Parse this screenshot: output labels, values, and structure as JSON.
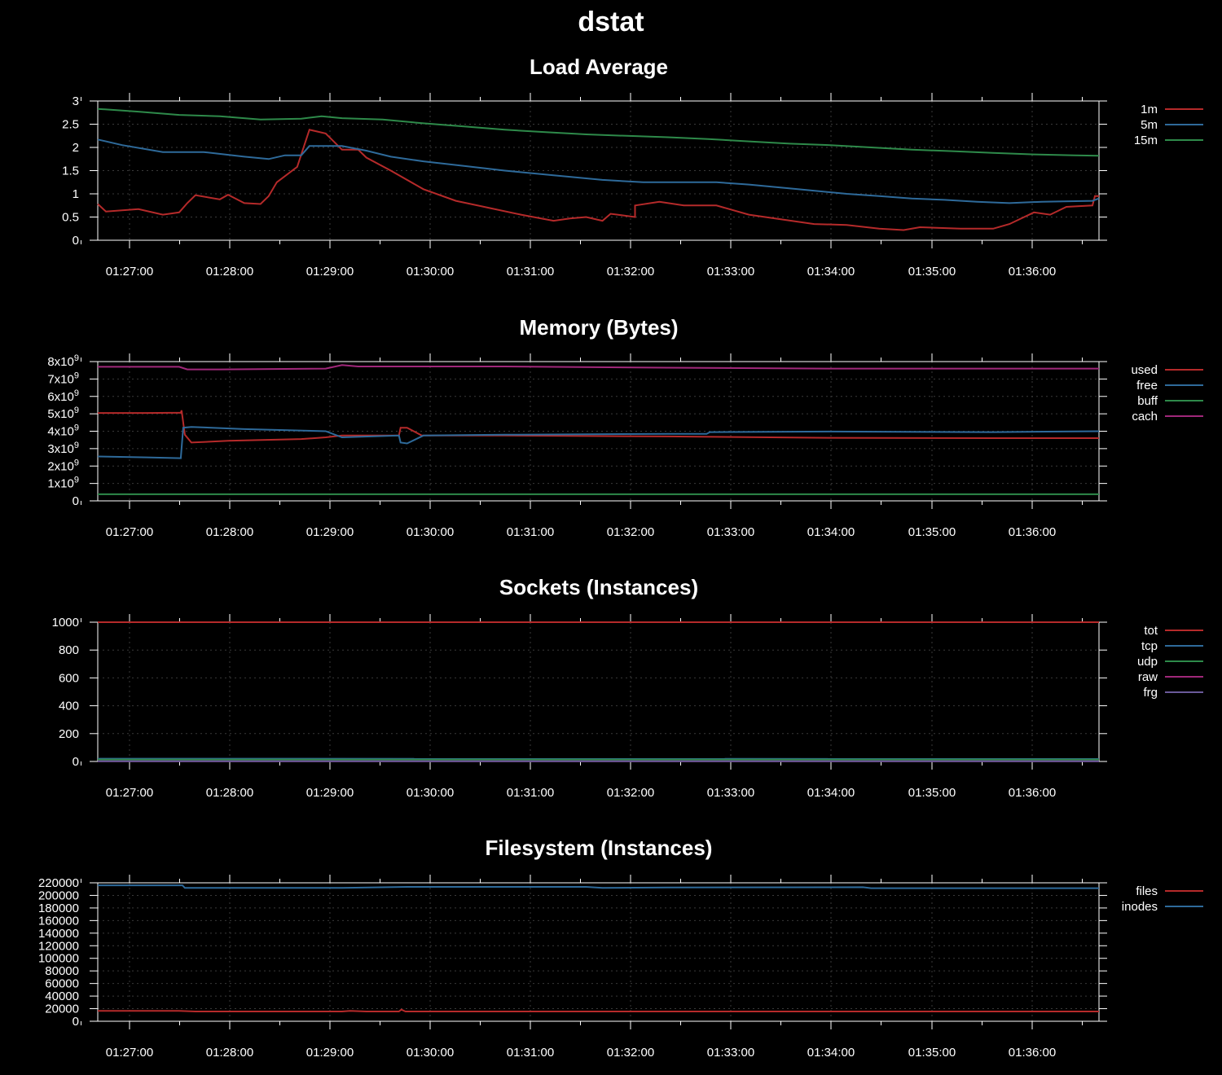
{
  "title": "dstat",
  "colors": {
    "background": "#000000",
    "axis": "#ffffff",
    "grid": "#3a3a3a",
    "red": "#b52a2a",
    "blue": "#2e6a9a",
    "green": "#2e8a4a",
    "magenta": "#a0287a",
    "purple": "#6a5a9a"
  },
  "x_ticks": [
    "01:27:00",
    "01:28:00",
    "01:29:00",
    "01:30:00",
    "01:31:00",
    "01:32:00",
    "01:33:00",
    "01:34:00",
    "01:35:00",
    "01:36:00"
  ],
  "chart_data": [
    {
      "type": "line",
      "title": "Load Average",
      "x_range": [
        "01:26:41",
        "01:36:41"
      ],
      "ylim": [
        0,
        3
      ],
      "yticks": [
        "0",
        "0.5",
        "1",
        "1.5",
        "2",
        "2.5",
        "3"
      ],
      "grid": true,
      "legend_position": "right",
      "series": [
        {
          "name": "1m",
          "color": "#b52a2a",
          "points": [
            [
              0,
              0.78
            ],
            [
              10,
              0.62
            ],
            [
              50,
              0.67
            ],
            [
              80,
              0.55
            ],
            [
              100,
              0.6
            ],
            [
              110,
              0.8
            ],
            [
              120,
              0.97
            ],
            [
              150,
              0.88
            ],
            [
              160,
              0.98
            ],
            [
              180,
              0.8
            ],
            [
              200,
              0.78
            ],
            [
              210,
              0.95
            ],
            [
              220,
              1.25
            ],
            [
              245,
              1.58
            ],
            [
              260,
              2.38
            ],
            [
              280,
              2.3
            ],
            [
              300,
              1.95
            ],
            [
              320,
              1.95
            ],
            [
              330,
              1.78
            ],
            [
              360,
              1.5
            ],
            [
              400,
              1.1
            ],
            [
              440,
              0.85
            ],
            [
              480,
              0.7
            ],
            [
              520,
              0.55
            ],
            [
              560,
              0.42
            ],
            [
              580,
              0.47
            ],
            [
              600,
              0.5
            ],
            [
              620,
              0.42
            ],
            [
              630,
              0.57
            ],
            [
              660,
              0.5
            ],
            [
              660,
              0.75
            ],
            [
              690,
              0.83
            ],
            [
              720,
              0.75
            ],
            [
              760,
              0.75
            ],
            [
              800,
              0.55
            ],
            [
              840,
              0.45
            ],
            [
              880,
              0.35
            ],
            [
              920,
              0.33
            ],
            [
              960,
              0.25
            ],
            [
              990,
              0.22
            ],
            [
              1010,
              0.28
            ],
            [
              1060,
              0.25
            ],
            [
              1100,
              0.25
            ],
            [
              1120,
              0.35
            ],
            [
              1150,
              0.6
            ],
            [
              1170,
              0.55
            ],
            [
              1190,
              0.72
            ],
            [
              1222,
              0.75
            ],
            [
              1225,
              0.95
            ],
            [
              1230,
              0.95
            ]
          ]
        },
        {
          "name": "5m",
          "color": "#2e6a9a",
          "points": [
            [
              0,
              2.17
            ],
            [
              30,
              2.05
            ],
            [
              80,
              1.9
            ],
            [
              130,
              1.9
            ],
            [
              180,
              1.8
            ],
            [
              210,
              1.75
            ],
            [
              230,
              1.83
            ],
            [
              250,
              1.83
            ],
            [
              260,
              2.03
            ],
            [
              300,
              2.03
            ],
            [
              330,
              1.93
            ],
            [
              360,
              1.8
            ],
            [
              400,
              1.7
            ],
            [
              450,
              1.6
            ],
            [
              500,
              1.5
            ],
            [
              560,
              1.4
            ],
            [
              620,
              1.3
            ],
            [
              670,
              1.25
            ],
            [
              700,
              1.25
            ],
            [
              760,
              1.25
            ],
            [
              800,
              1.2
            ],
            [
              860,
              1.1
            ],
            [
              920,
              1.0
            ],
            [
              960,
              0.95
            ],
            [
              1000,
              0.9
            ],
            [
              1040,
              0.87
            ],
            [
              1080,
              0.83
            ],
            [
              1120,
              0.8
            ],
            [
              1160,
              0.83
            ],
            [
              1222,
              0.85
            ],
            [
              1230,
              0.9
            ]
          ]
        },
        {
          "name": "15m",
          "color": "#2e8a4a",
          "points": [
            [
              0,
              2.83
            ],
            [
              50,
              2.77
            ],
            [
              100,
              2.7
            ],
            [
              150,
              2.67
            ],
            [
              200,
              2.6
            ],
            [
              250,
              2.62
            ],
            [
              275,
              2.67
            ],
            [
              300,
              2.63
            ],
            [
              350,
              2.6
            ],
            [
              400,
              2.52
            ],
            [
              450,
              2.45
            ],
            [
              500,
              2.38
            ],
            [
              550,
              2.33
            ],
            [
              600,
              2.28
            ],
            [
              650,
              2.25
            ],
            [
              700,
              2.22
            ],
            [
              750,
              2.18
            ],
            [
              800,
              2.13
            ],
            [
              850,
              2.08
            ],
            [
              900,
              2.05
            ],
            [
              950,
              2.0
            ],
            [
              1000,
              1.95
            ],
            [
              1050,
              1.92
            ],
            [
              1100,
              1.88
            ],
            [
              1150,
              1.85
            ],
            [
              1200,
              1.83
            ],
            [
              1230,
              1.82
            ]
          ]
        }
      ]
    },
    {
      "type": "line",
      "title": "Memory (Bytes)",
      "x_range": [
        "01:26:41",
        "01:36:41"
      ],
      "ylim": [
        0,
        8000000000
      ],
      "yticks": [
        "0",
        "1x10^9",
        "2x10^9",
        "3x10^9",
        "4x10^9",
        "5x10^9",
        "6x10^9",
        "7x10^9",
        "8x10^9"
      ],
      "grid": true,
      "legend_position": "right",
      "series": [
        {
          "name": "used",
          "color": "#b52a2a",
          "points": [
            [
              0,
              5050000000.0
            ],
            [
              60,
              5050000000.0
            ],
            [
              102,
              5060000000.0
            ],
            [
              103,
              5200000000.0
            ],
            [
              107,
              3800000000.0
            ],
            [
              115,
              3350000000.0
            ],
            [
              160,
              3450000000.0
            ],
            [
              250,
              3550000000.0
            ],
            [
              280,
              3650000000.0
            ],
            [
              300,
              3750000000.0
            ],
            [
              370,
              3750000000.0
            ],
            [
              372,
              4200000000.0
            ],
            [
              380,
              4200000000.0
            ],
            [
              398,
              3750000000.0
            ],
            [
              500,
              3750000000.0
            ],
            [
              700,
              3700000000.0
            ],
            [
              900,
              3620000000.0
            ],
            [
              1100,
              3600000000.0
            ],
            [
              1230,
              3600000000.0
            ]
          ]
        },
        {
          "name": "free",
          "color": "#2e6a9a",
          "points": [
            [
              0,
              2550000000.0
            ],
            [
              60,
              2500000000.0
            ],
            [
              102,
              2450000000.0
            ],
            [
              105,
              4200000000.0
            ],
            [
              115,
              4250000000.0
            ],
            [
              180,
              4120000000.0
            ],
            [
              280,
              4000000000.0
            ],
            [
              300,
              3650000000.0
            ],
            [
              370,
              3750000000.0
            ],
            [
              372,
              3350000000.0
            ],
            [
              380,
              3300000000.0
            ],
            [
              400,
              3750000000.0
            ],
            [
              500,
              3800000000.0
            ],
            [
              700,
              3850000000.0
            ],
            [
              748,
              3850000000.0
            ],
            [
              752,
              3950000000.0
            ],
            [
              900,
              3980000000.0
            ],
            [
              1100,
              3950000000.0
            ],
            [
              1230,
              4000000000.0
            ]
          ]
        },
        {
          "name": "buff",
          "color": "#2e8a4a",
          "points": [
            [
              0,
              380000000.0
            ],
            [
              1230,
              380000000.0
            ]
          ]
        },
        {
          "name": "cach",
          "color": "#a0287a",
          "points": [
            [
              0,
              7700000000.0
            ],
            [
              100,
              7700000000.0
            ],
            [
              110,
              7550000000.0
            ],
            [
              150,
              7550000000.0
            ],
            [
              280,
              7600000000.0
            ],
            [
              300,
              7800000000.0
            ],
            [
              320,
              7720000000.0
            ],
            [
              500,
              7720000000.0
            ],
            [
              700,
              7650000000.0
            ],
            [
              900,
              7600000000.0
            ],
            [
              1230,
              7600000000.0
            ]
          ]
        }
      ]
    },
    {
      "type": "line",
      "title": "Sockets (Instances)",
      "x_range": [
        "01:26:41",
        "01:36:41"
      ],
      "ylim": [
        0,
        1000
      ],
      "yticks": [
        "0",
        "200",
        "400",
        "600",
        "800",
        "1000"
      ],
      "grid": true,
      "legend_position": "right",
      "series": [
        {
          "name": "tot",
          "color": "#b52a2a",
          "points": [
            [
              0,
              1000
            ],
            [
              1230,
              1000
            ]
          ]
        },
        {
          "name": "tcp",
          "color": "#2e6a9a",
          "points": [
            [
              0,
              20
            ],
            [
              1230,
              18
            ]
          ]
        },
        {
          "name": "udp",
          "color": "#2e8a4a",
          "points": [
            [
              0,
              14
            ],
            [
              1230,
              14
            ]
          ]
        },
        {
          "name": "raw",
          "color": "#a0287a",
          "points": [
            [
              0,
              1
            ],
            [
              1230,
              1
            ]
          ]
        },
        {
          "name": "frg",
          "color": "#6a5a9a",
          "points": [
            [
              0,
              2
            ],
            [
              1230,
              2
            ]
          ]
        }
      ]
    },
    {
      "type": "line",
      "title": "Filesystem (Instances)",
      "x_range": [
        "01:26:41",
        "01:36:41"
      ],
      "ylim": [
        0,
        220000
      ],
      "yticks": [
        "0",
        "20000",
        "40000",
        "60000",
        "80000",
        "100000",
        "120000",
        "140000",
        "160000",
        "180000",
        "200000",
        "220000"
      ],
      "grid": true,
      "legend_position": "right",
      "series": [
        {
          "name": "files",
          "color": "#b52a2a",
          "points": [
            [
              0,
              16500
            ],
            [
              100,
              16500
            ],
            [
              120,
              15500
            ],
            [
              300,
              15500
            ],
            [
              310,
              16500
            ],
            [
              330,
              15500
            ],
            [
              370,
              15500
            ],
            [
              373,
              18500
            ],
            [
              378,
              15500
            ],
            [
              1230,
              15500
            ]
          ]
        },
        {
          "name": "inodes",
          "color": "#2e6a9a",
          "points": [
            [
              0,
              216000
            ],
            [
              104,
              216000
            ],
            [
              107,
              212000
            ],
            [
              300,
              212000
            ],
            [
              380,
              213500
            ],
            [
              600,
              213500
            ],
            [
              620,
              212000
            ],
            [
              700,
              212500
            ],
            [
              940,
              213000
            ],
            [
              950,
              211500
            ],
            [
              1230,
              211500
            ]
          ]
        }
      ]
    }
  ]
}
